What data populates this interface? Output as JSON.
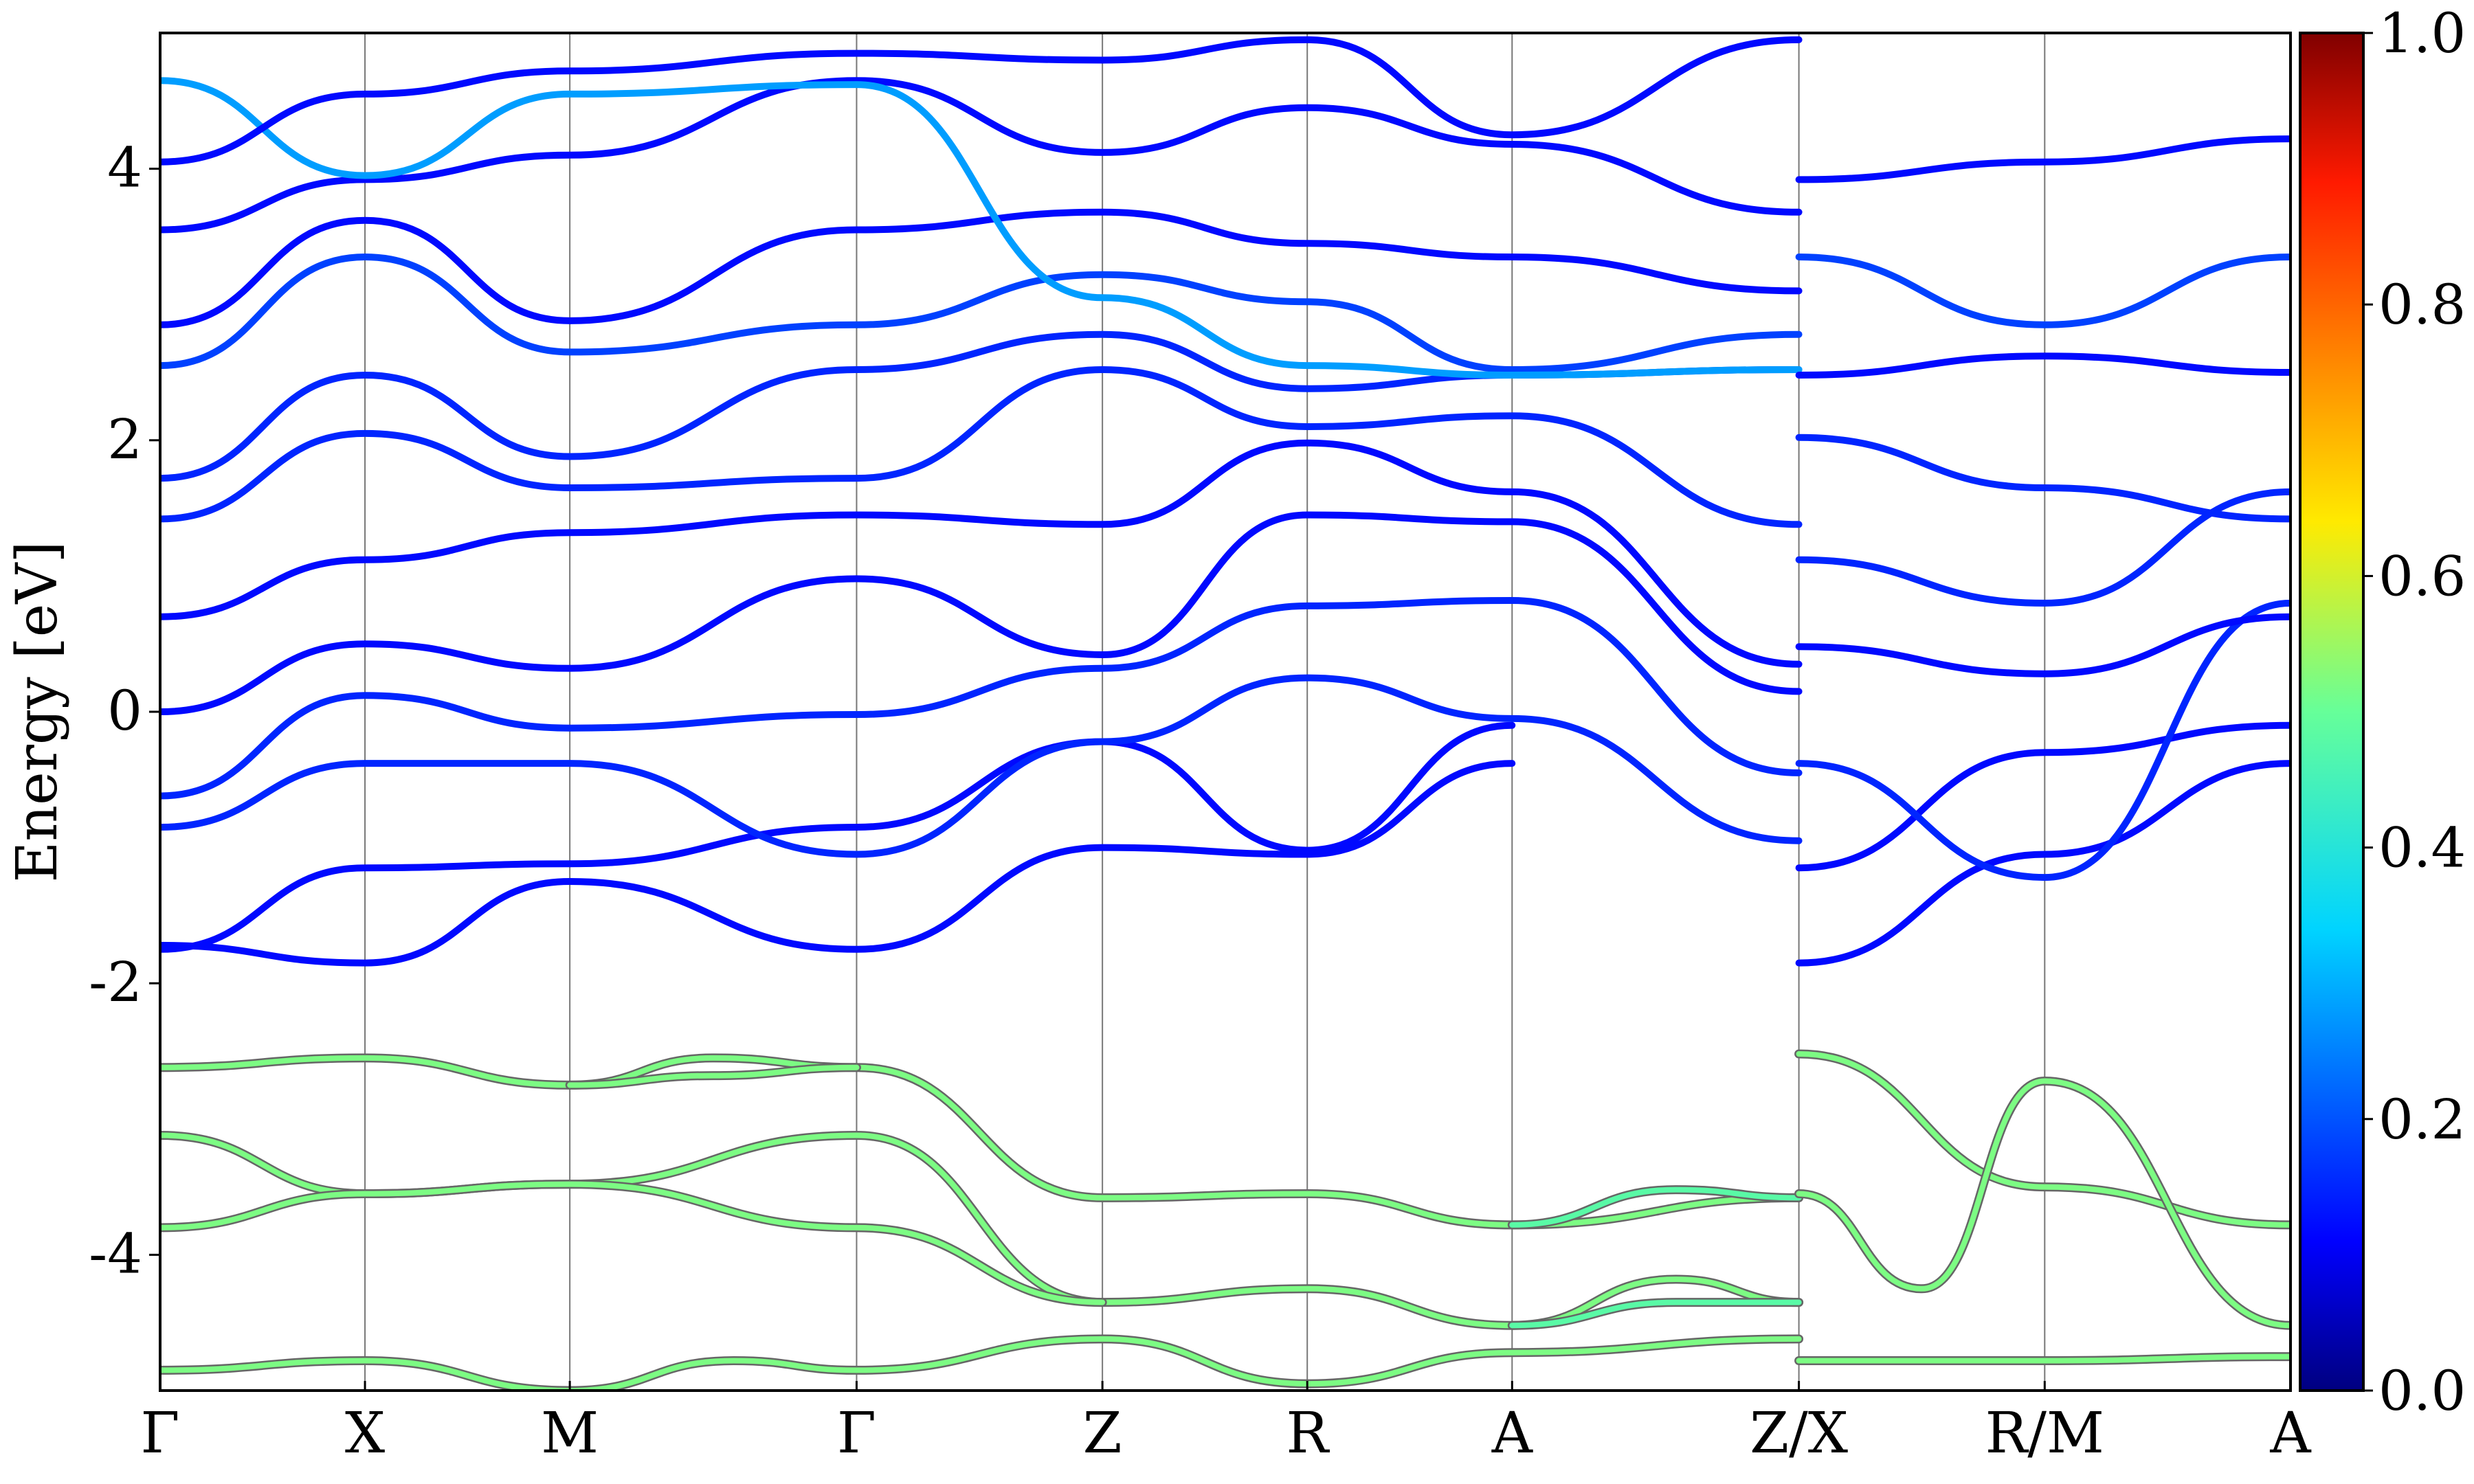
{
  "chart_data": {
    "type": "line",
    "ylabel": "Energy [eV]",
    "xlabel": "",
    "title": "",
    "ylim": [
      -5,
      5
    ],
    "yticks": [
      -4,
      -2,
      0,
      2,
      4
    ],
    "high_symmetry_points": [
      {
        "label": "Γ",
        "k": 0.0
      },
      {
        "label": "X",
        "k": 0.5
      },
      {
        "label": "M",
        "k": 1.0
      },
      {
        "label": "Γ",
        "k": 1.7
      },
      {
        "label": "Z",
        "k": 2.3
      },
      {
        "label": "R",
        "k": 2.8
      },
      {
        "label": "A",
        "k": 3.3
      },
      {
        "label": "Z/X",
        "k": 4.0
      },
      {
        "label": "R/M",
        "k": 4.6
      },
      {
        "label": "A",
        "k": 5.2
      }
    ],
    "colorbar": {
      "colormap": "jet",
      "range": [
        0.0,
        1.0
      ],
      "ticks": [
        "0.0",
        "0.2",
        "0.4",
        "0.6",
        "0.8",
        "1.0"
      ]
    },
    "grid": "vertical lines at high-symmetry points",
    "series": [
      {
        "group": "lower",
        "weight": 0.52,
        "k": [
          0.0,
          0.5,
          1.0,
          1.35,
          1.7,
          2.3,
          2.8,
          3.3,
          4.0
        ],
        "E": [
          -2.62,
          -2.55,
          -2.75,
          -2.55,
          -2.62,
          -3.58,
          -3.55,
          -3.78,
          -3.58
        ]
      },
      {
        "group": "lower",
        "weight": 0.52,
        "k": [
          1.0,
          1.35,
          1.7
        ],
        "E": [
          -2.75,
          -2.68,
          -2.62
        ]
      },
      {
        "group": "lower",
        "weight": 0.52,
        "k": [
          0.0,
          0.5,
          1.0,
          1.7,
          2.3,
          2.8,
          3.3,
          3.7,
          4.0
        ],
        "E": [
          -3.12,
          -3.55,
          -3.48,
          -3.12,
          -4.35,
          -4.25,
          -4.52,
          -4.18,
          -4.35
        ]
      },
      {
        "group": "lower",
        "weight": 0.52,
        "k": [
          0.0,
          0.5,
          1.0,
          1.7,
          2.3
        ],
        "E": [
          -3.8,
          -3.55,
          -3.48,
          -3.8,
          -4.35
        ]
      },
      {
        "group": "lower",
        "weight": 0.48,
        "k": [
          3.3,
          3.7,
          4.0
        ],
        "E": [
          -3.78,
          -3.52,
          -3.58
        ]
      },
      {
        "group": "lower",
        "weight": 0.48,
        "k": [
          3.3,
          3.7,
          4.0
        ],
        "E": [
          -4.52,
          -4.35,
          -4.35
        ]
      },
      {
        "group": "lower",
        "weight": 0.52,
        "k": [
          0.0,
          0.5,
          1.0,
          1.4,
          1.7,
          2.3,
          2.8,
          3.3,
          4.0
        ],
        "E": [
          -4.85,
          -4.78,
          -5.0,
          -4.78,
          -4.85,
          -4.62,
          -4.95,
          -4.72,
          -4.62
        ]
      },
      {
        "group": "lower",
        "weight": 0.52,
        "k": [
          4.0,
          4.6,
          5.2
        ],
        "E": [
          -2.52,
          -3.5,
          -3.78
        ]
      },
      {
        "group": "lower",
        "weight": 0.52,
        "k": [
          4.0,
          4.3,
          4.6,
          5.2
        ],
        "E": [
          -3.55,
          -4.25,
          -2.72,
          -4.52
        ]
      },
      {
        "group": "lower",
        "weight": 0.52,
        "k": [
          4.0,
          4.6,
          5.2
        ],
        "E": [
          -4.78,
          -4.78,
          -4.75
        ]
      },
      {
        "group": "upper",
        "weight": 0.12,
        "k": [
          0.0,
          0.5,
          1.0,
          1.7,
          2.3,
          2.8,
          3.3
        ],
        "E": [
          -1.72,
          -1.85,
          -1.25,
          -1.75,
          -1.0,
          -1.05,
          -0.38
        ]
      },
      {
        "group": "upper",
        "weight": 0.12,
        "k": [
          0.0,
          0.5,
          1.0,
          1.7,
          2.3,
          2.8,
          3.3
        ],
        "E": [
          -1.75,
          -1.15,
          -1.12,
          -0.85,
          -0.22,
          -1.02,
          -0.1
        ]
      },
      {
        "group": "upper",
        "weight": 0.15,
        "k": [
          0.0,
          0.5,
          1.0,
          1.7,
          2.3,
          2.8,
          3.3,
          4.0
        ],
        "E": [
          -0.85,
          -0.38,
          -0.38,
          -1.05,
          -0.22,
          0.25,
          -0.05,
          -0.95
        ]
      },
      {
        "group": "upper",
        "weight": 0.15,
        "k": [
          0.0,
          0.5,
          1.0,
          1.7,
          2.3,
          2.8,
          3.3,
          4.0
        ],
        "E": [
          -0.62,
          0.12,
          -0.12,
          -0.02,
          0.32,
          0.78,
          0.82,
          -0.45
        ]
      },
      {
        "group": "upper",
        "weight": 0.12,
        "k": [
          0.0,
          0.5,
          1.0,
          1.7,
          2.3,
          2.8,
          3.3,
          4.0
        ],
        "E": [
          0.0,
          0.5,
          0.32,
          0.98,
          0.42,
          1.45,
          1.4,
          0.15
        ]
      },
      {
        "group": "upper",
        "weight": 0.12,
        "k": [
          0.0,
          0.5,
          1.0,
          1.7,
          2.3,
          2.8,
          3.3,
          4.0
        ],
        "E": [
          0.7,
          1.12,
          1.32,
          1.45,
          1.38,
          1.98,
          1.62,
          0.35
        ]
      },
      {
        "group": "upper",
        "weight": 0.15,
        "k": [
          0.0,
          0.5,
          1.0,
          1.7,
          2.3,
          2.8,
          3.3,
          4.0
        ],
        "E": [
          1.42,
          2.05,
          1.65,
          1.72,
          2.52,
          2.1,
          2.18,
          1.38
        ]
      },
      {
        "group": "upper",
        "weight": 0.15,
        "k": [
          0.0,
          0.5,
          1.0,
          1.7,
          2.3,
          2.8,
          3.3,
          4.0
        ],
        "E": [
          1.72,
          2.48,
          1.88,
          2.52,
          2.78,
          2.38,
          2.48,
          2.52
        ]
      },
      {
        "group": "upper",
        "weight": 0.18,
        "k": [
          0.0,
          0.5,
          1.0,
          1.7,
          2.3,
          2.8,
          3.3,
          4.0
        ],
        "E": [
          2.55,
          3.35,
          2.65,
          2.85,
          3.22,
          3.02,
          2.52,
          2.78
        ]
      },
      {
        "group": "upper",
        "weight": 0.12,
        "k": [
          0.0,
          0.5,
          1.0,
          1.7,
          2.3,
          2.8,
          3.3,
          4.0
        ],
        "E": [
          2.85,
          3.62,
          2.88,
          3.55,
          3.68,
          3.45,
          3.35,
          3.1
        ]
      },
      {
        "group": "upper",
        "weight": 0.12,
        "k": [
          0.0,
          0.5,
          1.0,
          1.7,
          2.3,
          2.8,
          3.3,
          4.0
        ],
        "E": [
          3.55,
          3.92,
          4.1,
          4.65,
          4.12,
          4.45,
          4.18,
          3.68
        ]
      },
      {
        "group": "upper",
        "weight": 0.28,
        "k": [
          0.0,
          0.5,
          1.0,
          1.7,
          2.3,
          2.8,
          3.3,
          4.0
        ],
        "E": [
          4.65,
          3.95,
          4.55,
          4.62,
          3.05,
          2.55,
          2.48,
          2.52
        ]
      },
      {
        "group": "upper",
        "weight": 0.12,
        "k": [
          0.0,
          0.5,
          1.0,
          1.7,
          2.3,
          2.8,
          3.3,
          4.0
        ],
        "E": [
          4.05,
          4.55,
          4.72,
          4.85,
          4.8,
          4.95,
          4.25,
          4.95
        ]
      },
      {
        "group": "upper",
        "weight": 0.12,
        "k": [
          4.0,
          4.6,
          5.2
        ],
        "E": [
          -1.85,
          -1.05,
          -0.38
        ]
      },
      {
        "group": "upper",
        "weight": 0.12,
        "k": [
          4.0,
          4.6,
          5.2
        ],
        "E": [
          -1.15,
          -0.3,
          -0.1
        ]
      },
      {
        "group": "upper",
        "weight": 0.15,
        "k": [
          4.0,
          4.6,
          5.2
        ],
        "E": [
          -0.38,
          -1.22,
          0.8
        ]
      },
      {
        "group": "upper",
        "weight": 0.12,
        "k": [
          4.0,
          4.6,
          5.2
        ],
        "E": [
          0.48,
          0.28,
          0.7
        ]
      },
      {
        "group": "upper",
        "weight": 0.15,
        "k": [
          4.0,
          4.6,
          5.2
        ],
        "E": [
          1.12,
          0.8,
          1.62
        ]
      },
      {
        "group": "upper",
        "weight": 0.15,
        "k": [
          4.0,
          4.6,
          5.2
        ],
        "E": [
          2.02,
          1.65,
          1.42
        ]
      },
      {
        "group": "upper",
        "weight": 0.12,
        "k": [
          4.0,
          4.6,
          5.2
        ],
        "E": [
          2.48,
          2.62,
          2.5
        ]
      },
      {
        "group": "upper",
        "weight": 0.18,
        "k": [
          4.0,
          4.6,
          5.2
        ],
        "E": [
          3.35,
          2.85,
          3.35
        ]
      },
      {
        "group": "upper",
        "weight": 0.12,
        "k": [
          4.0,
          4.6,
          5.2
        ],
        "E": [
          3.92,
          4.05,
          4.22
        ]
      }
    ]
  }
}
